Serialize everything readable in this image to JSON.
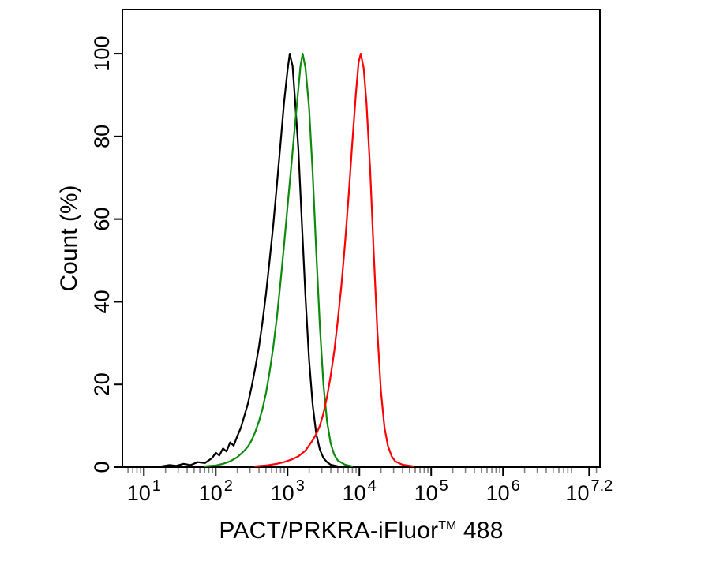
{
  "figure": {
    "background": "#ffffff",
    "ylabel": "Count (%)",
    "xlabel_parts": {
      "prefix": "PACT/PRKRA-iFluor",
      "sup": "TM",
      "suffix": " 488"
    }
  },
  "chart_data": {
    "type": "line",
    "subtype": "flow-cytometry-overlay-histogram",
    "title": "",
    "xlabel": "PACT/PRKRA-iFluor™ 488",
    "ylabel": "Count (%)",
    "x_scale": "log10",
    "x_domain_log10": [
      0.7,
      7.35
    ],
    "x_major_ticks": [
      {
        "log10": 1,
        "base": "10",
        "exp": "1"
      },
      {
        "log10": 2,
        "base": "10",
        "exp": "2"
      },
      {
        "log10": 3,
        "base": "10",
        "exp": "3"
      },
      {
        "log10": 4,
        "base": "10",
        "exp": "4"
      },
      {
        "log10": 5,
        "base": "10",
        "exp": "5"
      },
      {
        "log10": 6,
        "base": "10",
        "exp": "6"
      },
      {
        "log10": 7.2,
        "base": "10",
        "exp": "7.2"
      }
    ],
    "y_ticks": [
      0,
      20,
      40,
      60,
      80,
      100
    ],
    "ylim": [
      0,
      110.7
    ],
    "grid": false,
    "legend": "none",
    "axis_color": "#000000",
    "minor_tick_color": "#808080",
    "series": [
      {
        "name": "black",
        "color": "#000000",
        "peak_log10": 3.03,
        "peak_percent": 100,
        "points": [
          [
            1.25,
            0.2
          ],
          [
            1.35,
            0.5
          ],
          [
            1.45,
            0.3
          ],
          [
            1.55,
            0.8
          ],
          [
            1.65,
            0.5
          ],
          [
            1.75,
            1.2
          ],
          [
            1.85,
            1.0
          ],
          [
            1.95,
            2.2
          ],
          [
            2.0,
            3.5
          ],
          [
            2.05,
            2.8
          ],
          [
            2.1,
            4.5
          ],
          [
            2.15,
            3.8
          ],
          [
            2.2,
            6.0
          ],
          [
            2.25,
            5.2
          ],
          [
            2.3,
            7.5
          ],
          [
            2.35,
            9.5
          ],
          [
            2.4,
            12.5
          ],
          [
            2.45,
            15.5
          ],
          [
            2.5,
            19.5
          ],
          [
            2.55,
            24.0
          ],
          [
            2.6,
            29.0
          ],
          [
            2.65,
            35.0
          ],
          [
            2.7,
            42.0
          ],
          [
            2.75,
            50.0
          ],
          [
            2.8,
            58.5
          ],
          [
            2.85,
            68.0
          ],
          [
            2.9,
            78.0
          ],
          [
            2.95,
            88.0
          ],
          [
            3.0,
            96.0
          ],
          [
            3.03,
            100.0
          ],
          [
            3.07,
            97.0
          ],
          [
            3.1,
            90.0
          ],
          [
            3.15,
            77.0
          ],
          [
            3.2,
            59.0
          ],
          [
            3.25,
            41.0
          ],
          [
            3.3,
            26.0
          ],
          [
            3.35,
            15.0
          ],
          [
            3.4,
            8.0
          ],
          [
            3.45,
            4.2
          ],
          [
            3.5,
            2.2
          ],
          [
            3.55,
            1.2
          ],
          [
            3.6,
            0.6
          ],
          [
            3.7,
            0.2
          ]
        ]
      },
      {
        "name": "green",
        "color": "#0c8a0c",
        "peak_log10": 3.21,
        "peak_percent": 100,
        "points": [
          [
            1.85,
            0.2
          ],
          [
            2.0,
            0.4
          ],
          [
            2.1,
            0.8
          ],
          [
            2.2,
            1.4
          ],
          [
            2.3,
            2.4
          ],
          [
            2.4,
            4.0
          ],
          [
            2.45,
            5.0
          ],
          [
            2.5,
            6.5
          ],
          [
            2.55,
            8.5
          ],
          [
            2.6,
            11.0
          ],
          [
            2.65,
            14.0
          ],
          [
            2.7,
            18.0
          ],
          [
            2.75,
            23.0
          ],
          [
            2.8,
            29.0
          ],
          [
            2.85,
            36.0
          ],
          [
            2.9,
            44.5
          ],
          [
            2.95,
            53.5
          ],
          [
            3.0,
            63.0
          ],
          [
            3.05,
            72.5
          ],
          [
            3.1,
            82.0
          ],
          [
            3.15,
            91.5
          ],
          [
            3.18,
            97.0
          ],
          [
            3.21,
            100.0
          ],
          [
            3.25,
            96.5
          ],
          [
            3.3,
            87.0
          ],
          [
            3.35,
            71.0
          ],
          [
            3.4,
            52.0
          ],
          [
            3.45,
            34.0
          ],
          [
            3.5,
            20.0
          ],
          [
            3.55,
            11.0
          ],
          [
            3.6,
            5.8
          ],
          [
            3.65,
            3.0
          ],
          [
            3.7,
            1.6
          ],
          [
            3.8,
            0.6
          ],
          [
            3.9,
            0.2
          ]
        ]
      },
      {
        "name": "red",
        "color": "#ff0000",
        "peak_log10": 4.02,
        "peak_percent": 100,
        "points": [
          [
            2.55,
            0.2
          ],
          [
            2.7,
            0.4
          ],
          [
            2.85,
            0.8
          ],
          [
            2.95,
            1.2
          ],
          [
            3.05,
            1.8
          ],
          [
            3.15,
            2.6
          ],
          [
            3.25,
            4.0
          ],
          [
            3.35,
            6.5
          ],
          [
            3.4,
            8.0
          ],
          [
            3.45,
            10.0
          ],
          [
            3.5,
            13.0
          ],
          [
            3.55,
            17.0
          ],
          [
            3.6,
            22.0
          ],
          [
            3.65,
            28.0
          ],
          [
            3.7,
            35.5
          ],
          [
            3.75,
            44.0
          ],
          [
            3.8,
            54.0
          ],
          [
            3.85,
            65.5
          ],
          [
            3.9,
            78.0
          ],
          [
            3.95,
            90.0
          ],
          [
            3.99,
            98.0
          ],
          [
            4.02,
            100.0
          ],
          [
            4.06,
            96.5
          ],
          [
            4.1,
            88.0
          ],
          [
            4.15,
            72.0
          ],
          [
            4.2,
            52.0
          ],
          [
            4.25,
            33.0
          ],
          [
            4.3,
            18.5
          ],
          [
            4.35,
            9.5
          ],
          [
            4.4,
            5.0
          ],
          [
            4.45,
            2.6
          ],
          [
            4.5,
            1.4
          ],
          [
            4.6,
            0.6
          ],
          [
            4.75,
            0.2
          ]
        ]
      }
    ]
  }
}
